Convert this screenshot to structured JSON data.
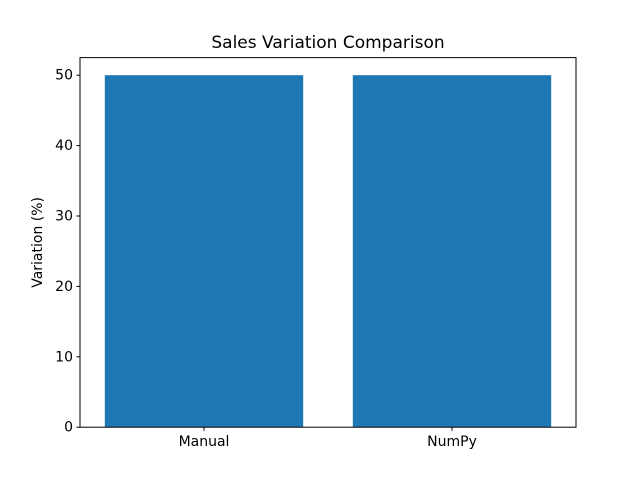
{
  "figure": {
    "background": "#ffffff"
  },
  "chart_data": {
    "type": "bar",
    "title": "Sales Variation Comparison",
    "categories": [
      "Manual",
      "NumPy"
    ],
    "values": [
      50,
      50
    ],
    "xlabel": "",
    "ylabel": "Variation (%)",
    "yticks": [
      0,
      10,
      20,
      30,
      40,
      50
    ],
    "ylim": [
      0,
      52.5
    ],
    "bar_color": "#1f77b4",
    "axis_color": "#000000",
    "text_color": "#000000",
    "bar_width_fraction": 0.8,
    "grid": false,
    "legend": null
  }
}
